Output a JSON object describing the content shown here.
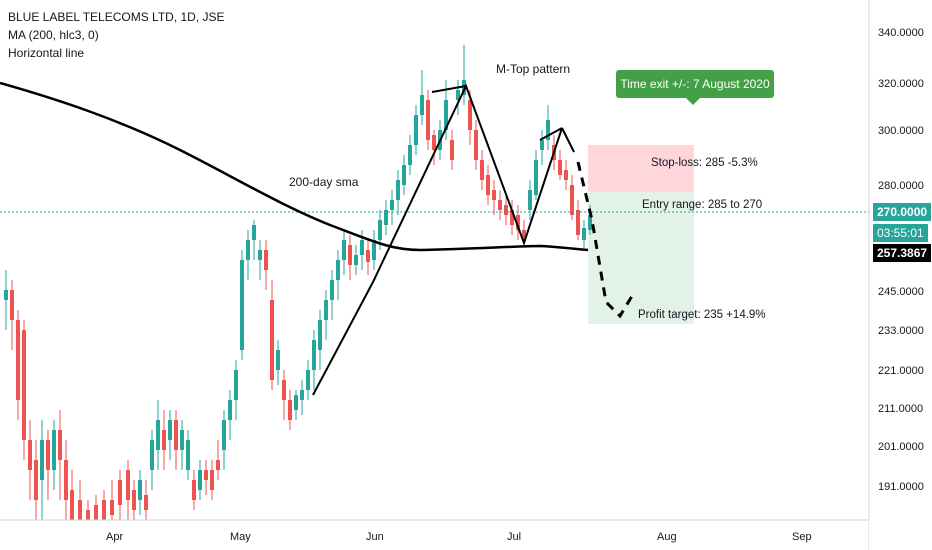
{
  "legend": {
    "title": "BLUE LABEL TELECOMS LTD, 1D, JSE",
    "ma": "MA (200, hlc3, 0)",
    "hline": "Horizontal line"
  },
  "annotations": {
    "sma_label": "200-day sma",
    "pattern_label": "M-Top pattern",
    "time_exit": "Time exit +/-: 7 August 2020",
    "stop_loss": "Stop-loss: 285 -5.3%",
    "entry_range": "Entry range: 285 to 270",
    "profit_target": "Profit target: 235 +14.9%"
  },
  "price_tags": {
    "last": "270.0000",
    "countdown": "03:55:01",
    "ma_value": "257.3867"
  },
  "colors": {
    "up": "#26a69a",
    "down": "#ef5350",
    "sma": "#000000",
    "hline": "#26a69a",
    "stop_zone": "#ffcdd2",
    "target_zone": "#e3f2e6"
  },
  "chart_data": {
    "type": "candlestick",
    "y_ticks": [
      "340.0000",
      "320.0000",
      "300.0000",
      "280.0000",
      "270.0000",
      "257.3867",
      "245.0000",
      "233.0000",
      "221.0000",
      "211.0000",
      "201.0000",
      "191.0000"
    ],
    "x_ticks": [
      "Apr",
      "May",
      "Jun",
      "Jul",
      "Aug",
      "Sep"
    ],
    "horizontal_line": 270,
    "stop_loss": 285,
    "entry_range": [
      285,
      270
    ],
    "profit_target": 235,
    "sma_last": 257.3867
  }
}
